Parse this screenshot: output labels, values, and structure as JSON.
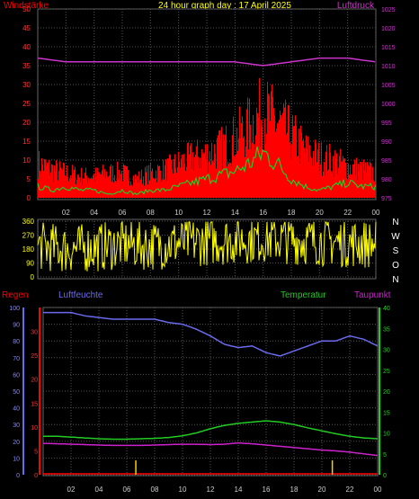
{
  "header": {
    "left_label": "Windstärke",
    "title": "24 hour graph day : 17 April 2025",
    "right_label": "Luftdruck"
  },
  "wind_panel": {
    "left_ticks": [
      "0",
      "5",
      "10",
      "15",
      "20",
      "25",
      "30",
      "35",
      "40",
      "45",
      "50"
    ],
    "right_ticks": [
      "975",
      "980",
      "985",
      "990",
      "995",
      "1000",
      "1005",
      "1010",
      "1015",
      "1020",
      "1025"
    ],
    "x_ticks": [
      "02",
      "04",
      "06",
      "08",
      "10",
      "12",
      "14",
      "16",
      "18",
      "20",
      "22",
      "00"
    ]
  },
  "direction_panel": {
    "left_ticks": [
      "0",
      "90",
      "180",
      "270",
      "360"
    ],
    "right_letters": [
      "N",
      "W",
      "S",
      "O",
      "N"
    ]
  },
  "bottom_panel": {
    "labels": {
      "rain": "Regen",
      "humidity": "Luftfeuchte",
      "temperature": "Temperatur",
      "dewpoint": "Taupunkt"
    },
    "humidity_ticks": [
      "0",
      "10",
      "20",
      "30",
      "40",
      "50",
      "60",
      "70",
      "80",
      "90",
      "100"
    ],
    "rain_ticks": [
      "0",
      "5",
      "10",
      "15",
      "20",
      "25",
      "30"
    ],
    "temp_ticks": [
      "0",
      "5",
      "10",
      "15",
      "20",
      "25",
      "30",
      "35",
      "40"
    ],
    "x_ticks": [
      "02",
      "04",
      "06",
      "08",
      "10",
      "12",
      "14",
      "16",
      "18",
      "20",
      "22",
      "00"
    ]
  },
  "colors": {
    "wind_gust": "#ff0000",
    "wind_avg": "#22cc22",
    "pressure": "#cc33cc",
    "direction": "#ffff00",
    "humidity": "#6a6aee",
    "temperature": "#22cc22",
    "dewpoint": "#cc22cc",
    "rain": "#ff0000",
    "grid": "#555555"
  },
  "chart_data": [
    {
      "type": "area",
      "name": "wind",
      "xlim": [
        0,
        24
      ],
      "ylim": [
        0,
        50
      ],
      "y2lim": [
        975,
        1025
      ],
      "series": [
        {
          "name": "",
          "role": "gust",
          "x": [
            0,
            1,
            2,
            3,
            4,
            5,
            6,
            7,
            8,
            9,
            10,
            11,
            12,
            13,
            14,
            15,
            16,
            17,
            18,
            19,
            20,
            21,
            22,
            23,
            24
          ],
          "values": [
            11,
            9,
            8,
            7,
            7,
            8,
            8,
            6,
            8,
            9,
            11,
            13,
            14,
            16,
            19,
            23,
            28,
            24,
            20,
            15,
            13,
            12,
            10,
            9,
            8
          ]
        },
        {
          "name": "",
          "role": "average",
          "x": [
            0,
            1,
            2,
            3,
            4,
            5,
            6,
            7,
            8,
            9,
            10,
            11,
            12,
            13,
            14,
            15,
            16,
            17,
            18,
            19,
            20,
            21,
            22,
            23,
            24
          ],
          "values": [
            3,
            2,
            3,
            2,
            2,
            1,
            2,
            1,
            2,
            2,
            3,
            4,
            5,
            6,
            7,
            9,
            12,
            9,
            5,
            3,
            2,
            3,
            4,
            3,
            3
          ]
        },
        {
          "name": "",
          "role": "pressure",
          "axis": "right",
          "x": [
            0,
            2,
            4,
            6,
            8,
            10,
            12,
            14,
            16,
            18,
            20,
            22,
            24
          ],
          "values": [
            1012,
            1011,
            1011,
            1011,
            1011,
            1011,
            1011,
            1011,
            1010,
            1011,
            1012,
            1012,
            1011
          ]
        }
      ]
    },
    {
      "type": "line",
      "name": "wind-direction",
      "xlim": [
        0,
        24
      ],
      "ylim": [
        0,
        360
      ],
      "series": [
        {
          "name": "",
          "x": [
            0,
            2,
            4,
            6,
            8,
            10,
            12,
            14,
            16,
            18,
            20,
            22,
            24
          ],
          "values": [
            200,
            180,
            190,
            210,
            200,
            220,
            230,
            240,
            250,
            240,
            230,
            220,
            210
          ]
        }
      ]
    },
    {
      "type": "line",
      "name": "humidity-temperature",
      "xlim": [
        0,
        24
      ],
      "ylim": [
        0,
        100
      ],
      "y2lim": [
        0,
        40
      ],
      "series": [
        {
          "name": "Luftfeuchte",
          "axis": "humidity",
          "x": [
            0,
            1,
            2,
            3,
            4,
            5,
            6,
            7,
            8,
            9,
            10,
            11,
            12,
            13,
            14,
            15,
            16,
            17,
            18,
            19,
            20,
            21,
            22,
            23,
            24
          ],
          "values": [
            97,
            97,
            97,
            95,
            94,
            93,
            93,
            93,
            93,
            91,
            90,
            87,
            83,
            78,
            76,
            77,
            73,
            71,
            74,
            77,
            80,
            80,
            83,
            81,
            77
          ]
        },
        {
          "name": "Temperatur",
          "axis": "temperature",
          "x": [
            0,
            1,
            2,
            3,
            4,
            5,
            6,
            7,
            8,
            9,
            10,
            11,
            12,
            13,
            14,
            15,
            16,
            17,
            18,
            19,
            20,
            21,
            22,
            23,
            24
          ],
          "values": [
            9.2,
            9.2,
            9.0,
            8.8,
            8.6,
            8.5,
            8.5,
            8.6,
            8.7,
            8.9,
            9.3,
            10.0,
            11.0,
            11.8,
            12.3,
            12.6,
            12.9,
            12.6,
            12.0,
            11.2,
            10.5,
            9.8,
            9.2,
            8.8,
            8.6
          ]
        },
        {
          "name": "Taupunkt",
          "axis": "temperature",
          "x": [
            0,
            1,
            2,
            3,
            4,
            5,
            6,
            7,
            8,
            9,
            10,
            11,
            12,
            13,
            14,
            15,
            16,
            17,
            18,
            19,
            20,
            21,
            22,
            23,
            24
          ],
          "values": [
            7.5,
            7.4,
            7.3,
            7.2,
            7.1,
            7.0,
            7.0,
            7.0,
            7.1,
            7.2,
            7.3,
            7.3,
            7.2,
            7.3,
            7.6,
            7.4,
            7.1,
            6.8,
            6.5,
            6.2,
            5.9,
            5.7,
            5.4,
            5.0,
            4.6
          ]
        },
        {
          "name": "Regen",
          "axis": "rain",
          "type": "bar",
          "x": [
            6.6,
            20.7
          ],
          "values": [
            3.0,
            3.0
          ]
        }
      ]
    }
  ]
}
